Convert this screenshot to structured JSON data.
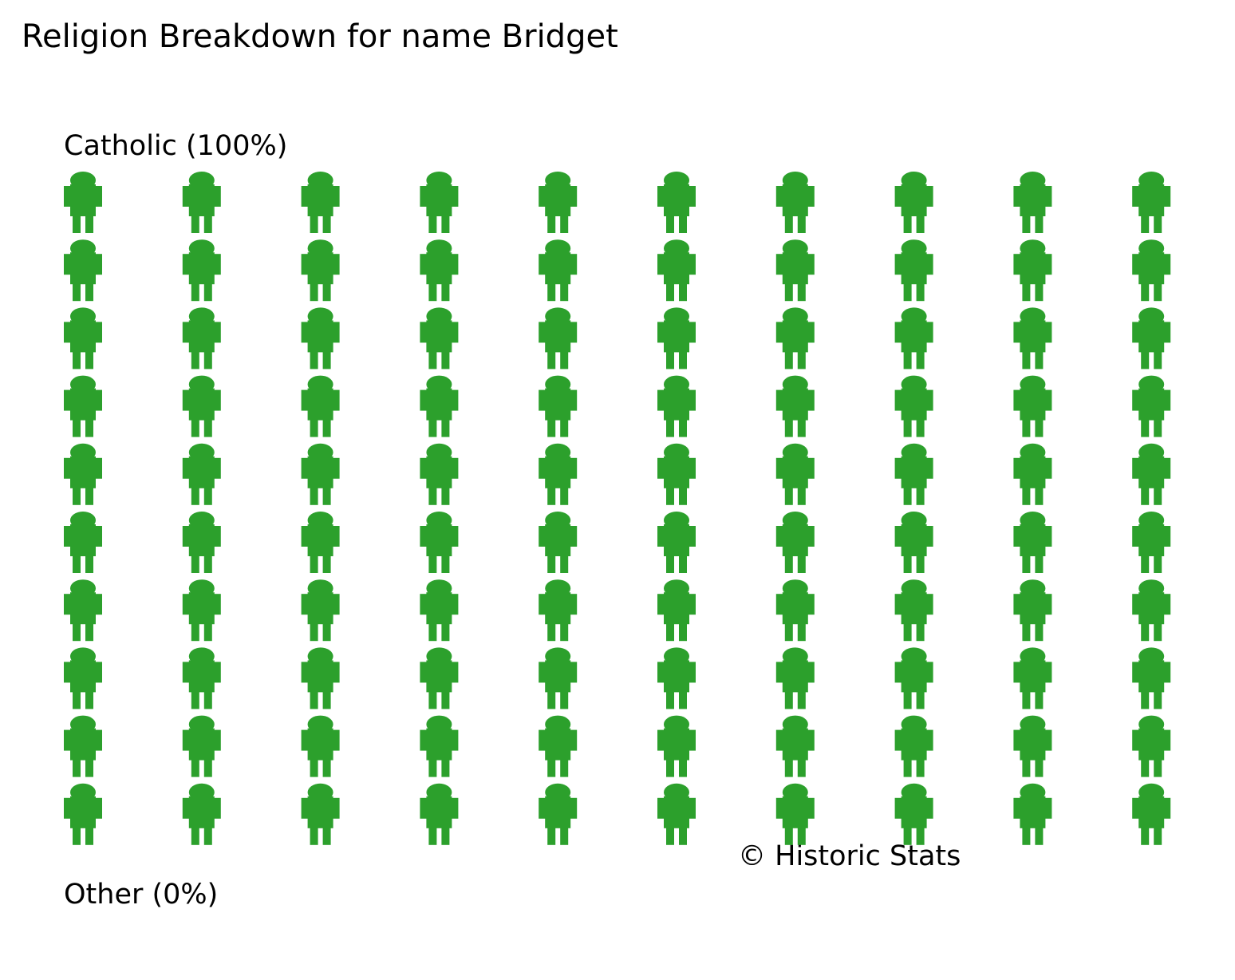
{
  "chart_data": {
    "type": "pictogram",
    "title": "Religion Breakdown for name Bridget",
    "categories": [
      "Catholic (100%)",
      "Other (0%)"
    ],
    "values": [
      100,
      0
    ],
    "color": "#2ca02c",
    "annotation": "© Historic Stats"
  }
}
